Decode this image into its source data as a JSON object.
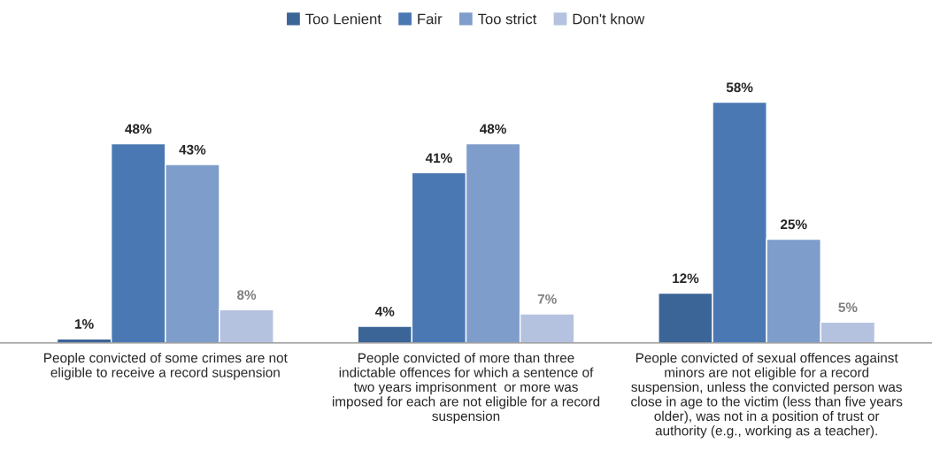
{
  "chart_data": {
    "type": "bar",
    "categories": [
      "People convicted of some crimes are not\neligible to receive a record suspension",
      "People convicted of more than three\nindictable offences for which a sentence of\ntwo years imprisonment  or more was\nimposed for each are not eligible for a record\nsuspension",
      "People convicted of sexual offences against\nminors are not eligible for a record\nsuspension, unless the convicted person was\nclose in age to the victim (less than five years\nolder), was not in a position of trust or\nauthority (e.g., working as a teacher)."
    ],
    "series": [
      {
        "name": "Too Lenient",
        "color": "#3b6497",
        "values": [
          1,
          4,
          12
        ],
        "value_labels": [
          "1%",
          "4%",
          "12%"
        ]
      },
      {
        "name": "Fair",
        "color": "#4a78b3",
        "values": [
          48,
          41,
          58
        ],
        "value_labels": [
          "48%",
          "41%",
          "58%"
        ]
      },
      {
        "name": "Too strict",
        "color": "#7f9dca",
        "values": [
          43,
          48,
          25
        ],
        "value_labels": [
          "43%",
          "48%",
          "25%"
        ]
      },
      {
        "name": "Don't know",
        "color": "#b4c2df",
        "values": [
          8,
          7,
          5
        ],
        "value_labels": [
          "8%",
          "7%",
          "5%"
        ]
      }
    ],
    "legend": "top",
    "grid": false
  }
}
